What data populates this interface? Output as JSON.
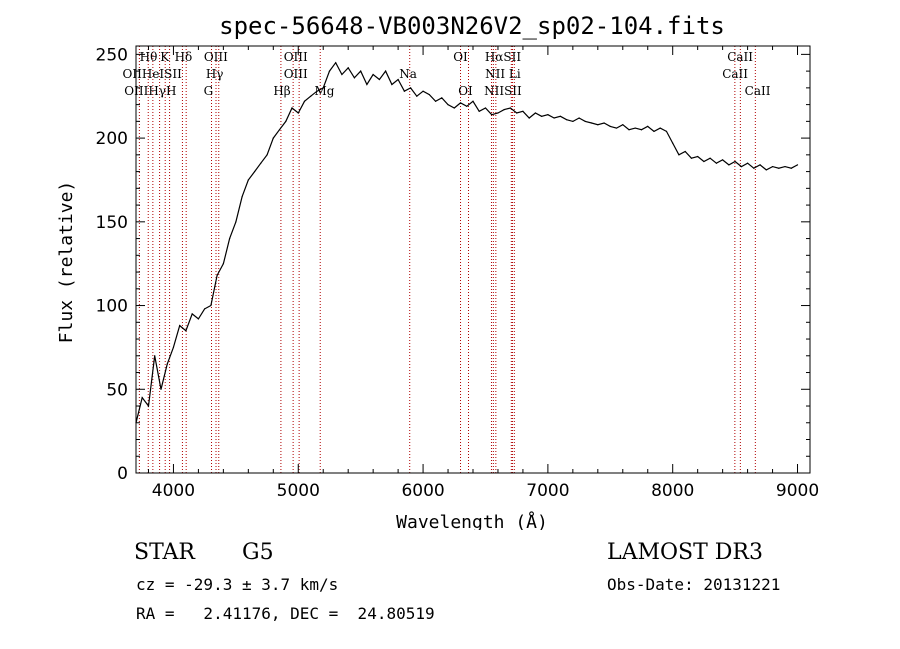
{
  "chart_data": {
    "type": "line",
    "title": "spec-56648-VB003N26V2_sp02-104.fits",
    "xlabel": "Wavelength (Å)",
    "ylabel": "Flux (relative)",
    "xlim": [
      3700,
      9100
    ],
    "ylim": [
      0,
      255
    ],
    "xticks": [
      4000,
      5000,
      6000,
      7000,
      8000,
      9000
    ],
    "yticks": [
      0,
      50,
      100,
      150,
      200,
      250
    ],
    "series": [
      {
        "color": "#000000",
        "x": [
          3700,
          3750,
          3800,
          3850,
          3900,
          3950,
          4000,
          4050,
          4100,
          4150,
          4200,
          4250,
          4300,
          4350,
          4400,
          4450,
          4500,
          4550,
          4600,
          4650,
          4700,
          4750,
          4800,
          4850,
          4900,
          4950,
          5000,
          5050,
          5100,
          5150,
          5200,
          5250,
          5300,
          5350,
          5400,
          5450,
          5500,
          5550,
          5600,
          5650,
          5700,
          5750,
          5800,
          5850,
          5900,
          5950,
          6000,
          6050,
          6100,
          6150,
          6200,
          6250,
          6300,
          6350,
          6400,
          6450,
          6500,
          6550,
          6600,
          6650,
          6700,
          6750,
          6800,
          6850,
          6900,
          6950,
          7000,
          7050,
          7100,
          7150,
          7200,
          7250,
          7300,
          7350,
          7400,
          7450,
          7500,
          7550,
          7600,
          7650,
          7700,
          7750,
          7800,
          7850,
          7900,
          7950,
          8000,
          8050,
          8100,
          8150,
          8200,
          8250,
          8300,
          8350,
          8400,
          8450,
          8500,
          8550,
          8600,
          8650,
          8700,
          8750,
          8800,
          8850,
          8900,
          8950,
          9000
        ],
        "y": [
          30,
          45,
          40,
          70,
          50,
          65,
          75,
          88,
          85,
          95,
          92,
          98,
          100,
          118,
          125,
          140,
          150,
          165,
          175,
          180,
          185,
          190,
          200,
          205,
          210,
          218,
          215,
          222,
          225,
          228,
          230,
          240,
          245,
          238,
          242,
          236,
          240,
          232,
          238,
          235,
          240,
          232,
          235,
          228,
          230,
          225,
          228,
          226,
          222,
          224,
          220,
          218,
          221,
          219,
          222,
          216,
          218,
          214,
          215,
          217,
          218,
          215,
          216,
          212,
          215,
          213,
          214,
          212,
          213,
          211,
          210,
          212,
          210,
          209,
          208,
          209,
          207,
          206,
          208,
          205,
          206,
          205,
          207,
          204,
          206,
          204,
          197,
          190,
          192,
          188,
          189,
          186,
          188,
          185,
          187,
          184,
          186,
          183,
          185,
          182,
          184,
          181,
          183,
          182,
          183,
          182,
          184
        ]
      }
    ],
    "lines": [
      {
        "x": 3727,
        "labels": [
          "OII"
        ]
      },
      {
        "x": 3798,
        "labels": [
          "Hθ"
        ]
      },
      {
        "x": 3835,
        "labels": [
          "OIII"
        ]
      },
      {
        "x": 3889,
        "labels": [
          "HeI"
        ]
      },
      {
        "x": 3934,
        "labels": [
          "K"
        ]
      },
      {
        "x": 3969,
        "labels": [
          "H"
        ]
      },
      {
        "x": 4072,
        "labels": [
          "SII"
        ]
      },
      {
        "x": 4102,
        "labels": [
          "Hδ"
        ]
      },
      {
        "x": 4305,
        "labels": [
          "G"
        ]
      },
      {
        "x": 4341,
        "labels": [
          "Hγ"
        ]
      },
      {
        "x": 4363,
        "labels": [
          "OIII"
        ]
      },
      {
        "x": 4861,
        "labels": [
          "Hβ"
        ]
      },
      {
        "x": 4959,
        "labels": [
          "OIII"
        ]
      },
      {
        "x": 5007,
        "labels": [
          "OIII"
        ]
      },
      {
        "x": 5176,
        "labels": [
          "Mg"
        ]
      },
      {
        "x": 5893,
        "labels": [
          "Na"
        ]
      },
      {
        "x": 6300,
        "labels": [
          "OI"
        ]
      },
      {
        "x": 6364,
        "labels": [
          "OI"
        ]
      },
      {
        "x": 6548,
        "labels": [
          "NII"
        ]
      },
      {
        "x": 6563,
        "labels": [
          "Hα"
        ]
      },
      {
        "x": 6583,
        "labels": [
          "NII"
        ]
      },
      {
        "x": 6707,
        "labels": [
          "Li"
        ]
      },
      {
        "x": 6716,
        "labels": [
          "SII"
        ]
      },
      {
        "x": 6731,
        "labels": [
          "SII"
        ]
      },
      {
        "x": 8498,
        "labels": [
          "CaII"
        ]
      },
      {
        "x": 8542,
        "labels": [
          "CaII"
        ]
      },
      {
        "x": 8662,
        "labels": [
          "CaII"
        ]
      }
    ],
    "line_label_rows": [
      {
        "texts": [
          "Hθ",
          "K",
          "Hδ",
          "OIII",
          "OIII",
          "OI",
          "HαSII",
          "CaII"
        ],
        "x": [
          3800,
          3930,
          4080,
          4340,
          4980,
          6300,
          6640,
          8540
        ]
      },
      {
        "texts": [
          "OIIHeISII",
          "Hγ",
          "OIII",
          "Na",
          "NII Li",
          "CaII"
        ],
        "x": [
          3830,
          4330,
          4980,
          5880,
          6640,
          8500
        ]
      },
      {
        "texts": [
          "OIIIHγH",
          "G",
          "Hβ",
          "Mg",
          "OI",
          "NIISII",
          "CaII"
        ],
        "x": [
          3815,
          4280,
          4870,
          5210,
          6340,
          6640,
          8680
        ]
      }
    ]
  },
  "info": {
    "object_type": "STAR",
    "subclass": "G5",
    "cz": "cz = -29.3 ± 3.7 km/s",
    "coords": "RA =   2.41176, DEC =  24.80519",
    "survey": "LAMOST DR3",
    "obs_date": "Obs-Date: 20131221"
  }
}
